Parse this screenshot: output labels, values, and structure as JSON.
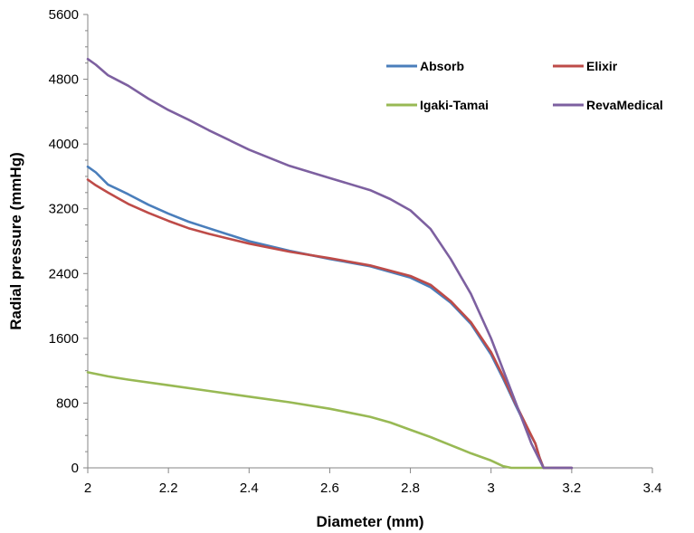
{
  "chart_data": {
    "type": "line",
    "title": "",
    "xlabel": "Diameter (mm)",
    "ylabel": "Radial pressure (mmHg)",
    "xlim": [
      2,
      3.4
    ],
    "ylim": [
      0,
      5600
    ],
    "xticks": [
      "2",
      "2.2",
      "2.4",
      "2.6",
      "2.8",
      "3",
      "3.2",
      "3.4"
    ],
    "yticks": [
      "0",
      "800",
      "1600",
      "2400",
      "3200",
      "4000",
      "4800",
      "5600"
    ],
    "grid": false,
    "legend_position": "top-right",
    "series": [
      {
        "name": "Absorb",
        "color": "#4a7ebb",
        "x": [
          2.0,
          2.02,
          2.05,
          2.1,
          2.15,
          2.2,
          2.25,
          2.3,
          2.4,
          2.5,
          2.6,
          2.7,
          2.8,
          2.85,
          2.9,
          2.95,
          3.0,
          3.03,
          3.06,
          3.09,
          3.11,
          3.12,
          3.13,
          3.15,
          3.2
        ],
        "y": [
          3720,
          3650,
          3500,
          3380,
          3250,
          3140,
          3040,
          2960,
          2800,
          2680,
          2580,
          2490,
          2350,
          2230,
          2040,
          1780,
          1400,
          1100,
          780,
          480,
          300,
          130,
          0,
          0,
          0
        ]
      },
      {
        "name": "Elixir",
        "color": "#be4b48",
        "x": [
          2.0,
          2.02,
          2.05,
          2.1,
          2.15,
          2.2,
          2.25,
          2.3,
          2.4,
          2.5,
          2.6,
          2.7,
          2.8,
          2.85,
          2.9,
          2.95,
          3.0,
          3.03,
          3.06,
          3.09,
          3.11,
          3.12,
          3.13,
          3.15,
          3.2
        ],
        "y": [
          3560,
          3490,
          3400,
          3260,
          3150,
          3050,
          2960,
          2890,
          2770,
          2670,
          2590,
          2500,
          2370,
          2260,
          2060,
          1800,
          1430,
          1130,
          800,
          500,
          300,
          130,
          0,
          0,
          0
        ]
      },
      {
        "name": "Igaki-Tamai",
        "color": "#98b954",
        "x": [
          2.0,
          2.05,
          2.1,
          2.2,
          2.3,
          2.4,
          2.5,
          2.6,
          2.7,
          2.75,
          2.8,
          2.85,
          2.9,
          2.95,
          3.0,
          3.03,
          3.05,
          3.1,
          3.15
        ],
        "y": [
          1180,
          1130,
          1090,
          1020,
          950,
          880,
          810,
          730,
          630,
          560,
          470,
          380,
          280,
          180,
          90,
          20,
          0,
          0,
          0
        ]
      },
      {
        "name": "RevaMedical",
        "color": "#7d60a0",
        "x": [
          2.0,
          2.02,
          2.05,
          2.1,
          2.15,
          2.2,
          2.25,
          2.3,
          2.4,
          2.5,
          2.6,
          2.7,
          2.75,
          2.8,
          2.85,
          2.9,
          2.95,
          3.0,
          3.05,
          3.08,
          3.1,
          3.12,
          3.13,
          3.15,
          3.2
        ],
        "y": [
          5050,
          4980,
          4850,
          4720,
          4560,
          4420,
          4300,
          4170,
          3930,
          3730,
          3580,
          3430,
          3320,
          3180,
          2950,
          2580,
          2150,
          1600,
          950,
          560,
          300,
          100,
          0,
          0,
          0
        ]
      }
    ]
  }
}
